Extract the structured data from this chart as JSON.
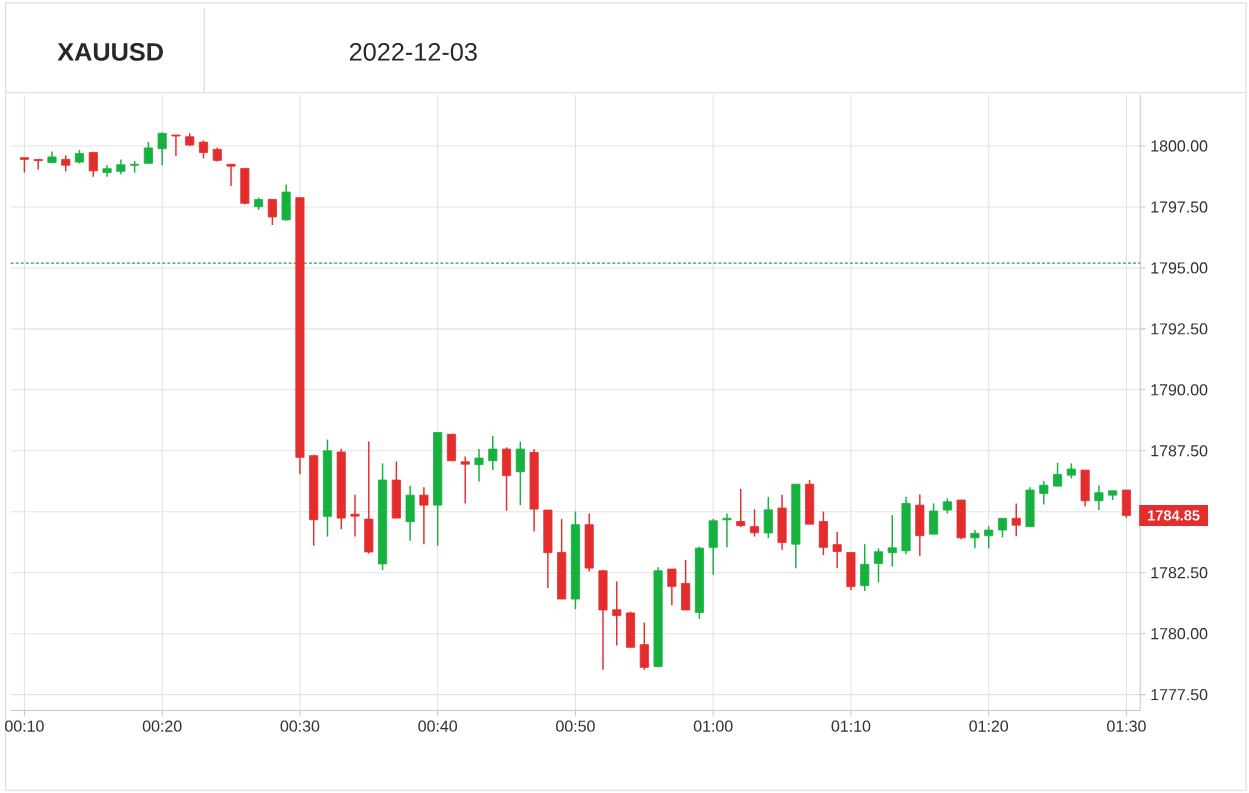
{
  "chart_data": {
    "type": "candlestick",
    "title": "XAUUSD",
    "subtitle": "2022-12-03",
    "x": [
      "2022-12-03T00:10",
      "2022-12-03T00:11",
      "2022-12-03T00:12",
      "2022-12-03T00:13",
      "2022-12-03T00:14",
      "2022-12-03T00:15",
      "2022-12-03T00:16",
      "2022-12-03T00:17",
      "2022-12-03T00:18",
      "2022-12-03T00:19",
      "2022-12-03T00:20",
      "2022-12-03T00:21",
      "2022-12-03T00:22",
      "2022-12-03T00:23",
      "2022-12-03T00:24",
      "2022-12-03T00:25",
      "2022-12-03T00:26",
      "2022-12-03T00:27",
      "2022-12-03T00:28",
      "2022-12-03T00:29",
      "2022-12-03T00:30",
      "2022-12-03T00:31",
      "2022-12-03T00:32",
      "2022-12-03T00:33",
      "2022-12-03T00:34",
      "2022-12-03T00:35",
      "2022-12-03T00:36",
      "2022-12-03T00:37",
      "2022-12-03T00:38",
      "2022-12-03T00:39",
      "2022-12-03T00:40",
      "2022-12-03T00:41",
      "2022-12-03T00:42",
      "2022-12-03T00:43",
      "2022-12-03T00:44",
      "2022-12-03T00:45",
      "2022-12-03T00:46",
      "2022-12-03T00:47",
      "2022-12-03T00:48",
      "2022-12-03T00:49",
      "2022-12-03T00:50",
      "2022-12-03T00:51",
      "2022-12-03T00:52",
      "2022-12-03T00:53",
      "2022-12-03T00:54",
      "2022-12-03T00:55",
      "2022-12-03T00:56",
      "2022-12-03T00:57",
      "2022-12-03T00:58",
      "2022-12-03T00:59",
      "2022-12-03T01:00",
      "2022-12-03T01:01",
      "2022-12-03T01:02",
      "2022-12-03T01:03",
      "2022-12-03T01:04",
      "2022-12-03T01:05",
      "2022-12-03T01:06",
      "2022-12-03T01:07",
      "2022-12-03T01:08",
      "2022-12-03T01:09",
      "2022-12-03T01:10",
      "2022-12-03T01:11",
      "2022-12-03T01:12",
      "2022-12-03T01:13",
      "2022-12-03T01:14",
      "2022-12-03T01:15",
      "2022-12-03T01:16",
      "2022-12-03T01:17",
      "2022-12-03T01:18",
      "2022-12-03T01:19",
      "2022-12-03T01:20",
      "2022-12-03T01:21",
      "2022-12-03T01:22",
      "2022-12-03T01:23",
      "2022-12-03T01:24",
      "2022-12-03T01:25",
      "2022-12-03T01:26",
      "2022-12-03T01:27",
      "2022-12-03T01:28",
      "2022-12-03T01:29",
      "2022-12-03T01:30"
    ],
    "ohlc": [
      [
        1799.52,
        1799.52,
        1798.91,
        1799.45
      ],
      [
        1799.45,
        1799.45,
        1799.04,
        1799.4
      ],
      [
        1799.32,
        1799.77,
        1799.29,
        1799.55
      ],
      [
        1799.45,
        1799.62,
        1798.95,
        1799.21
      ],
      [
        1799.34,
        1799.84,
        1799.28,
        1799.69
      ],
      [
        1799.73,
        1799.77,
        1798.74,
        1798.98
      ],
      [
        1798.91,
        1799.22,
        1798.74,
        1799.07
      ],
      [
        1798.96,
        1799.45,
        1798.84,
        1799.23
      ],
      [
        1799.21,
        1799.39,
        1798.91,
        1799.25
      ],
      [
        1799.29,
        1800.16,
        1799.29,
        1799.92
      ],
      [
        1799.89,
        1800.55,
        1799.21,
        1800.52
      ],
      [
        1800.45,
        1800.45,
        1799.59,
        1800.41
      ],
      [
        1800.38,
        1800.52,
        1800.0,
        1800.04
      ],
      [
        1800.16,
        1800.23,
        1799.49,
        1799.73
      ],
      [
        1799.86,
        1799.93,
        1799.36,
        1799.41
      ],
      [
        1799.25,
        1799.25,
        1798.36,
        1799.17
      ],
      [
        1799.08,
        1799.08,
        1797.6,
        1797.65
      ],
      [
        1797.51,
        1797.88,
        1797.38,
        1797.81
      ],
      [
        1797.81,
        1797.81,
        1796.76,
        1797.09
      ],
      [
        1796.97,
        1798.42,
        1796.93,
        1798.11
      ],
      [
        1797.88,
        1797.88,
        1786.54,
        1787.23
      ],
      [
        1787.3,
        1787.34,
        1783.61,
        1784.67
      ],
      [
        1784.81,
        1787.96,
        1783.98,
        1787.5
      ],
      [
        1787.45,
        1787.58,
        1784.28,
        1784.74
      ],
      [
        1784.9,
        1785.7,
        1783.98,
        1784.82
      ],
      [
        1784.7,
        1787.88,
        1783.29,
        1783.35
      ],
      [
        1782.86,
        1786.98,
        1782.61,
        1786.3
      ],
      [
        1786.3,
        1787.06,
        1784.74,
        1784.74
      ],
      [
        1784.59,
        1786.07,
        1783.81,
        1785.68
      ],
      [
        1785.68,
        1786.0,
        1783.67,
        1785.27
      ],
      [
        1785.27,
        1788.25,
        1783.61,
        1788.25
      ],
      [
        1788.18,
        1788.18,
        1787.09,
        1787.09
      ],
      [
        1787.05,
        1787.27,
        1785.34,
        1786.95
      ],
      [
        1786.93,
        1787.57,
        1786.24,
        1787.2
      ],
      [
        1787.09,
        1788.11,
        1786.71,
        1787.57
      ],
      [
        1787.57,
        1787.64,
        1785.04,
        1786.48
      ],
      [
        1786.64,
        1787.88,
        1785.27,
        1787.57
      ],
      [
        1787.43,
        1787.57,
        1784.19,
        1785.11
      ],
      [
        1785.07,
        1785.07,
        1781.87,
        1783.32
      ],
      [
        1783.33,
        1784.7,
        1781.42,
        1781.42
      ],
      [
        1781.42,
        1785.01,
        1781.01,
        1784.47
      ],
      [
        1784.47,
        1784.93,
        1782.55,
        1782.69
      ],
      [
        1782.58,
        1782.61,
        1778.52,
        1780.97
      ],
      [
        1780.98,
        1782.14,
        1779.51,
        1780.74
      ],
      [
        1780.85,
        1780.9,
        1779.44,
        1779.44
      ],
      [
        1779.55,
        1780.46,
        1778.52,
        1778.62
      ],
      [
        1778.65,
        1782.72,
        1778.62,
        1782.58
      ],
      [
        1782.65,
        1782.65,
        1781.17,
        1781.94
      ],
      [
        1782.06,
        1783.02,
        1780.97,
        1780.97
      ],
      [
        1780.87,
        1783.57,
        1780.6,
        1783.51
      ],
      [
        1783.54,
        1784.7,
        1782.42,
        1784.63
      ],
      [
        1784.67,
        1784.93,
        1783.54,
        1784.73
      ],
      [
        1784.6,
        1785.93,
        1784.36,
        1784.43
      ],
      [
        1784.39,
        1785.1,
        1783.98,
        1784.14
      ],
      [
        1784.13,
        1785.61,
        1783.92,
        1785.08
      ],
      [
        1785.15,
        1785.7,
        1783.44,
        1783.74
      ],
      [
        1783.67,
        1786.13,
        1782.68,
        1786.13
      ],
      [
        1786.13,
        1786.3,
        1784.49,
        1784.49
      ],
      [
        1784.6,
        1785.01,
        1783.22,
        1783.54
      ],
      [
        1783.65,
        1784.18,
        1782.69,
        1783.37
      ],
      [
        1783.33,
        1783.33,
        1781.79,
        1781.93
      ],
      [
        1781.97,
        1783.67,
        1781.75,
        1782.84
      ],
      [
        1782.88,
        1783.5,
        1782.1,
        1783.36
      ],
      [
        1783.32,
        1784.86,
        1782.75,
        1783.52
      ],
      [
        1783.4,
        1785.61,
        1783.26,
        1785.34
      ],
      [
        1785.27,
        1785.71,
        1783.2,
        1784.02
      ],
      [
        1784.08,
        1785.34,
        1784.08,
        1785.03
      ],
      [
        1785.07,
        1785.55,
        1784.93,
        1785.41
      ],
      [
        1785.48,
        1785.48,
        1783.87,
        1783.93
      ],
      [
        1783.93,
        1784.25,
        1783.5,
        1784.11
      ],
      [
        1784.02,
        1784.41,
        1783.5,
        1784.25
      ],
      [
        1784.25,
        1784.73,
        1783.95,
        1784.73
      ],
      [
        1784.73,
        1785.34,
        1784.0,
        1784.45
      ],
      [
        1784.39,
        1786.0,
        1784.39,
        1785.89
      ],
      [
        1785.75,
        1786.26,
        1785.3,
        1786.09
      ],
      [
        1786.05,
        1787.01,
        1786.05,
        1786.53
      ],
      [
        1786.5,
        1786.98,
        1786.37,
        1786.75
      ],
      [
        1786.71,
        1786.71,
        1785.23,
        1785.45
      ],
      [
        1785.45,
        1786.09,
        1785.07,
        1785.78
      ],
      [
        1785.68,
        1785.86,
        1785.48,
        1785.86
      ],
      [
        1785.89,
        1785.89,
        1784.75,
        1784.85
      ]
    ],
    "colors": [
      "#e42d2d",
      "#e42d2d",
      "#17b13f",
      "#e42d2d",
      "#17b13f",
      "#e42d2d",
      "#17b13f",
      "#17b13f",
      "#17b13f",
      "#17b13f",
      "#17b13f",
      "#e42d2d",
      "#e42d2d",
      "#e42d2d",
      "#e42d2d",
      "#e42d2d",
      "#e42d2d",
      "#17b13f",
      "#e42d2d",
      "#17b13f",
      "#e42d2d",
      "#e42d2d",
      "#17b13f",
      "#e42d2d",
      "#e42d2d",
      "#e42d2d",
      "#17b13f",
      "#e42d2d",
      "#17b13f",
      "#e42d2d",
      "#17b13f",
      "#e42d2d",
      "#e42d2d",
      "#17b13f",
      "#17b13f",
      "#e42d2d",
      "#17b13f",
      "#e42d2d",
      "#e42d2d",
      "#e42d2d",
      "#17b13f",
      "#e42d2d",
      "#e42d2d",
      "#e42d2d",
      "#e42d2d",
      "#e42d2d",
      "#17b13f",
      "#e42d2d",
      "#e42d2d",
      "#17b13f",
      "#17b13f",
      "#17b13f",
      "#e42d2d",
      "#e42d2d",
      "#17b13f",
      "#e42d2d",
      "#17b13f",
      "#e42d2d",
      "#e42d2d",
      "#e42d2d",
      "#e42d2d",
      "#17b13f",
      "#17b13f",
      "#17b13f",
      "#17b13f",
      "#e42d2d",
      "#17b13f",
      "#17b13f",
      "#e42d2d",
      "#17b13f",
      "#17b13f",
      "#17b13f",
      "#e42d2d",
      "#17b13f",
      "#17b13f",
      "#17b13f",
      "#17b13f",
      "#e42d2d",
      "#17b13f",
      "#17b13f",
      "#e42d2d"
    ],
    "xlim": [
      "2022-12-03T00:09",
      "2022-12-03T01:31"
    ],
    "xticks": [
      {
        "value": "2022-12-03T00:10",
        "label": "00:10"
      },
      {
        "value": "2022-12-03T00:20",
        "label": "00:20"
      },
      {
        "value": "2022-12-03T00:30",
        "label": "00:30"
      },
      {
        "value": "2022-12-03T00:40",
        "label": "00:40"
      },
      {
        "value": "2022-12-03T00:50",
        "label": "00:50"
      },
      {
        "value": "2022-12-03T01:00",
        "label": "01:00"
      },
      {
        "value": "2022-12-03T01:10",
        "label": "01:10"
      },
      {
        "value": "2022-12-03T01:20",
        "label": "01:20"
      },
      {
        "value": "2022-12-03T01:30",
        "label": "01:30"
      }
    ],
    "ylim": [
      1776.85,
      1802.1
    ],
    "yticks": [
      {
        "value": 1777.5,
        "label": "1777.50"
      },
      {
        "value": 1780,
        "label": "1780.00"
      },
      {
        "value": 1782.5,
        "label": "1782.50"
      },
      {
        "value": 1785,
        "label": null
      },
      {
        "value": 1787.5,
        "label": "1787.50"
      },
      {
        "value": 1790,
        "label": "1790.00"
      },
      {
        "value": 1792.5,
        "label": "1792.50"
      },
      {
        "value": 1795,
        "label": "1795.00"
      },
      {
        "value": 1797.5,
        "label": "1797.50"
      },
      {
        "value": 1800,
        "label": "1800.00"
      }
    ],
    "grid": true,
    "ref_lines": [
      {
        "axis": "y",
        "value": 1795.2,
        "color": "#20a83c",
        "line_style": "dotted"
      }
    ],
    "annotations": [
      {
        "text": "1784.85",
        "x": "2022-12-03T01:30",
        "y": 1784.85
      }
    ]
  }
}
